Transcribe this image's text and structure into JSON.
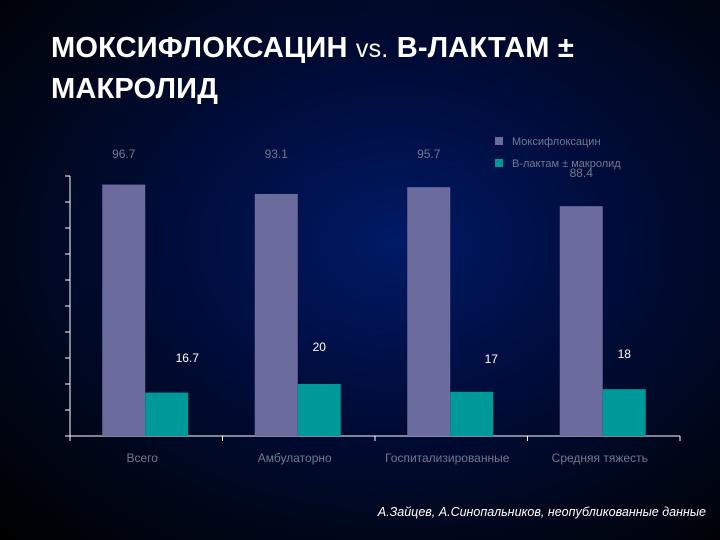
{
  "slide": {
    "title_part1": "МОКСИФЛОКСАЦИН",
    "title_vs": "vs.",
    "title_part2": "В-ЛАКТАМ ±",
    "title_line2": "МАКРОЛИД"
  },
  "footnote": "А.Зайцев, А.Синопальников, неопубликованные данные",
  "colors": {
    "series1": "#6b6b9e",
    "series2": "#009999",
    "axis": "#ffffff",
    "label_on_bar": "#ffffff",
    "label_dark": "#6c7a8e"
  },
  "chart_data": {
    "type": "bar",
    "categories": [
      "Всего",
      "Амбулаторно",
      "Госпитализированные",
      "Средняя тяжесть"
    ],
    "ylim": [
      0,
      100
    ],
    "series": [
      {
        "name": "Моксифлоксацин",
        "values": [
          96.7,
          93.1,
          95.7,
          88.4
        ],
        "labels": [
          "96.7",
          "93.1",
          "95.7",
          "88.4"
        ]
      },
      {
        "name": "В-лактам ± макролид",
        "values": [
          16.7,
          20,
          17,
          18
        ],
        "labels": [
          "16.7",
          "20",
          "17",
          "18"
        ]
      }
    ],
    "grid": false,
    "legend_position": "top-right"
  }
}
